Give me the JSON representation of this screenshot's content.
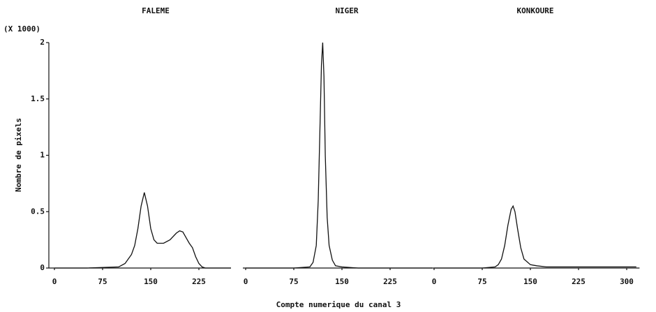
{
  "chart_data": [
    {
      "type": "line",
      "title": "FALEME",
      "y_scale_note": "(X 1000)",
      "ylabel": "Nombre de pixels",
      "ylim": [
        0,
        2
      ],
      "yticks": [
        0,
        0.5,
        1,
        1.5,
        2
      ],
      "xlim": [
        0,
        275
      ],
      "xticks": [
        0,
        75,
        150,
        225
      ],
      "x": [
        0,
        50,
        100,
        110,
        120,
        125,
        130,
        135,
        140,
        145,
        150,
        155,
        160,
        170,
        180,
        190,
        195,
        200,
        205,
        210,
        215,
        220,
        225,
        230,
        235,
        250,
        275
      ],
      "series": [
        {
          "color": "#111111",
          "values": [
            0,
            0,
            0.01,
            0.04,
            0.12,
            0.2,
            0.35,
            0.55,
            0.67,
            0.55,
            0.35,
            0.25,
            0.22,
            0.22,
            0.25,
            0.31,
            0.33,
            0.32,
            0.27,
            0.22,
            0.18,
            0.1,
            0.04,
            0.01,
            0,
            0,
            0
          ]
        }
      ]
    },
    {
      "type": "line",
      "title": "NIGER",
      "xlabel": "Compte numerique du canal 3",
      "ylim": [
        0,
        2
      ],
      "xlim": [
        0,
        290
      ],
      "xticks": [
        0,
        75,
        150,
        225
      ],
      "x": [
        0,
        75,
        100,
        105,
        110,
        113,
        116,
        118,
        120,
        122,
        124,
        127,
        130,
        135,
        140,
        150,
        175,
        290
      ],
      "series": [
        {
          "color": "#111111",
          "values": [
            0,
            0,
            0.01,
            0.05,
            0.2,
            0.6,
            1.3,
            1.8,
            2.0,
            1.7,
            1.0,
            0.45,
            0.2,
            0.07,
            0.02,
            0.01,
            0,
            0
          ]
        }
      ]
    },
    {
      "type": "line",
      "title": "KONKOURE",
      "ylim": [
        0,
        2
      ],
      "xlim": [
        0,
        320
      ],
      "xticks": [
        0,
        75,
        150,
        225,
        300
      ],
      "x": [
        0,
        75,
        95,
        100,
        105,
        110,
        115,
        120,
        123,
        126,
        130,
        135,
        140,
        150,
        160,
        175,
        200,
        300,
        315
      ],
      "series": [
        {
          "color": "#111111",
          "values": [
            0,
            0,
            0.01,
            0.03,
            0.08,
            0.2,
            0.38,
            0.52,
            0.55,
            0.5,
            0.35,
            0.18,
            0.08,
            0.03,
            0.02,
            0.01,
            0.01,
            0.01,
            0.01
          ]
        }
      ]
    }
  ]
}
